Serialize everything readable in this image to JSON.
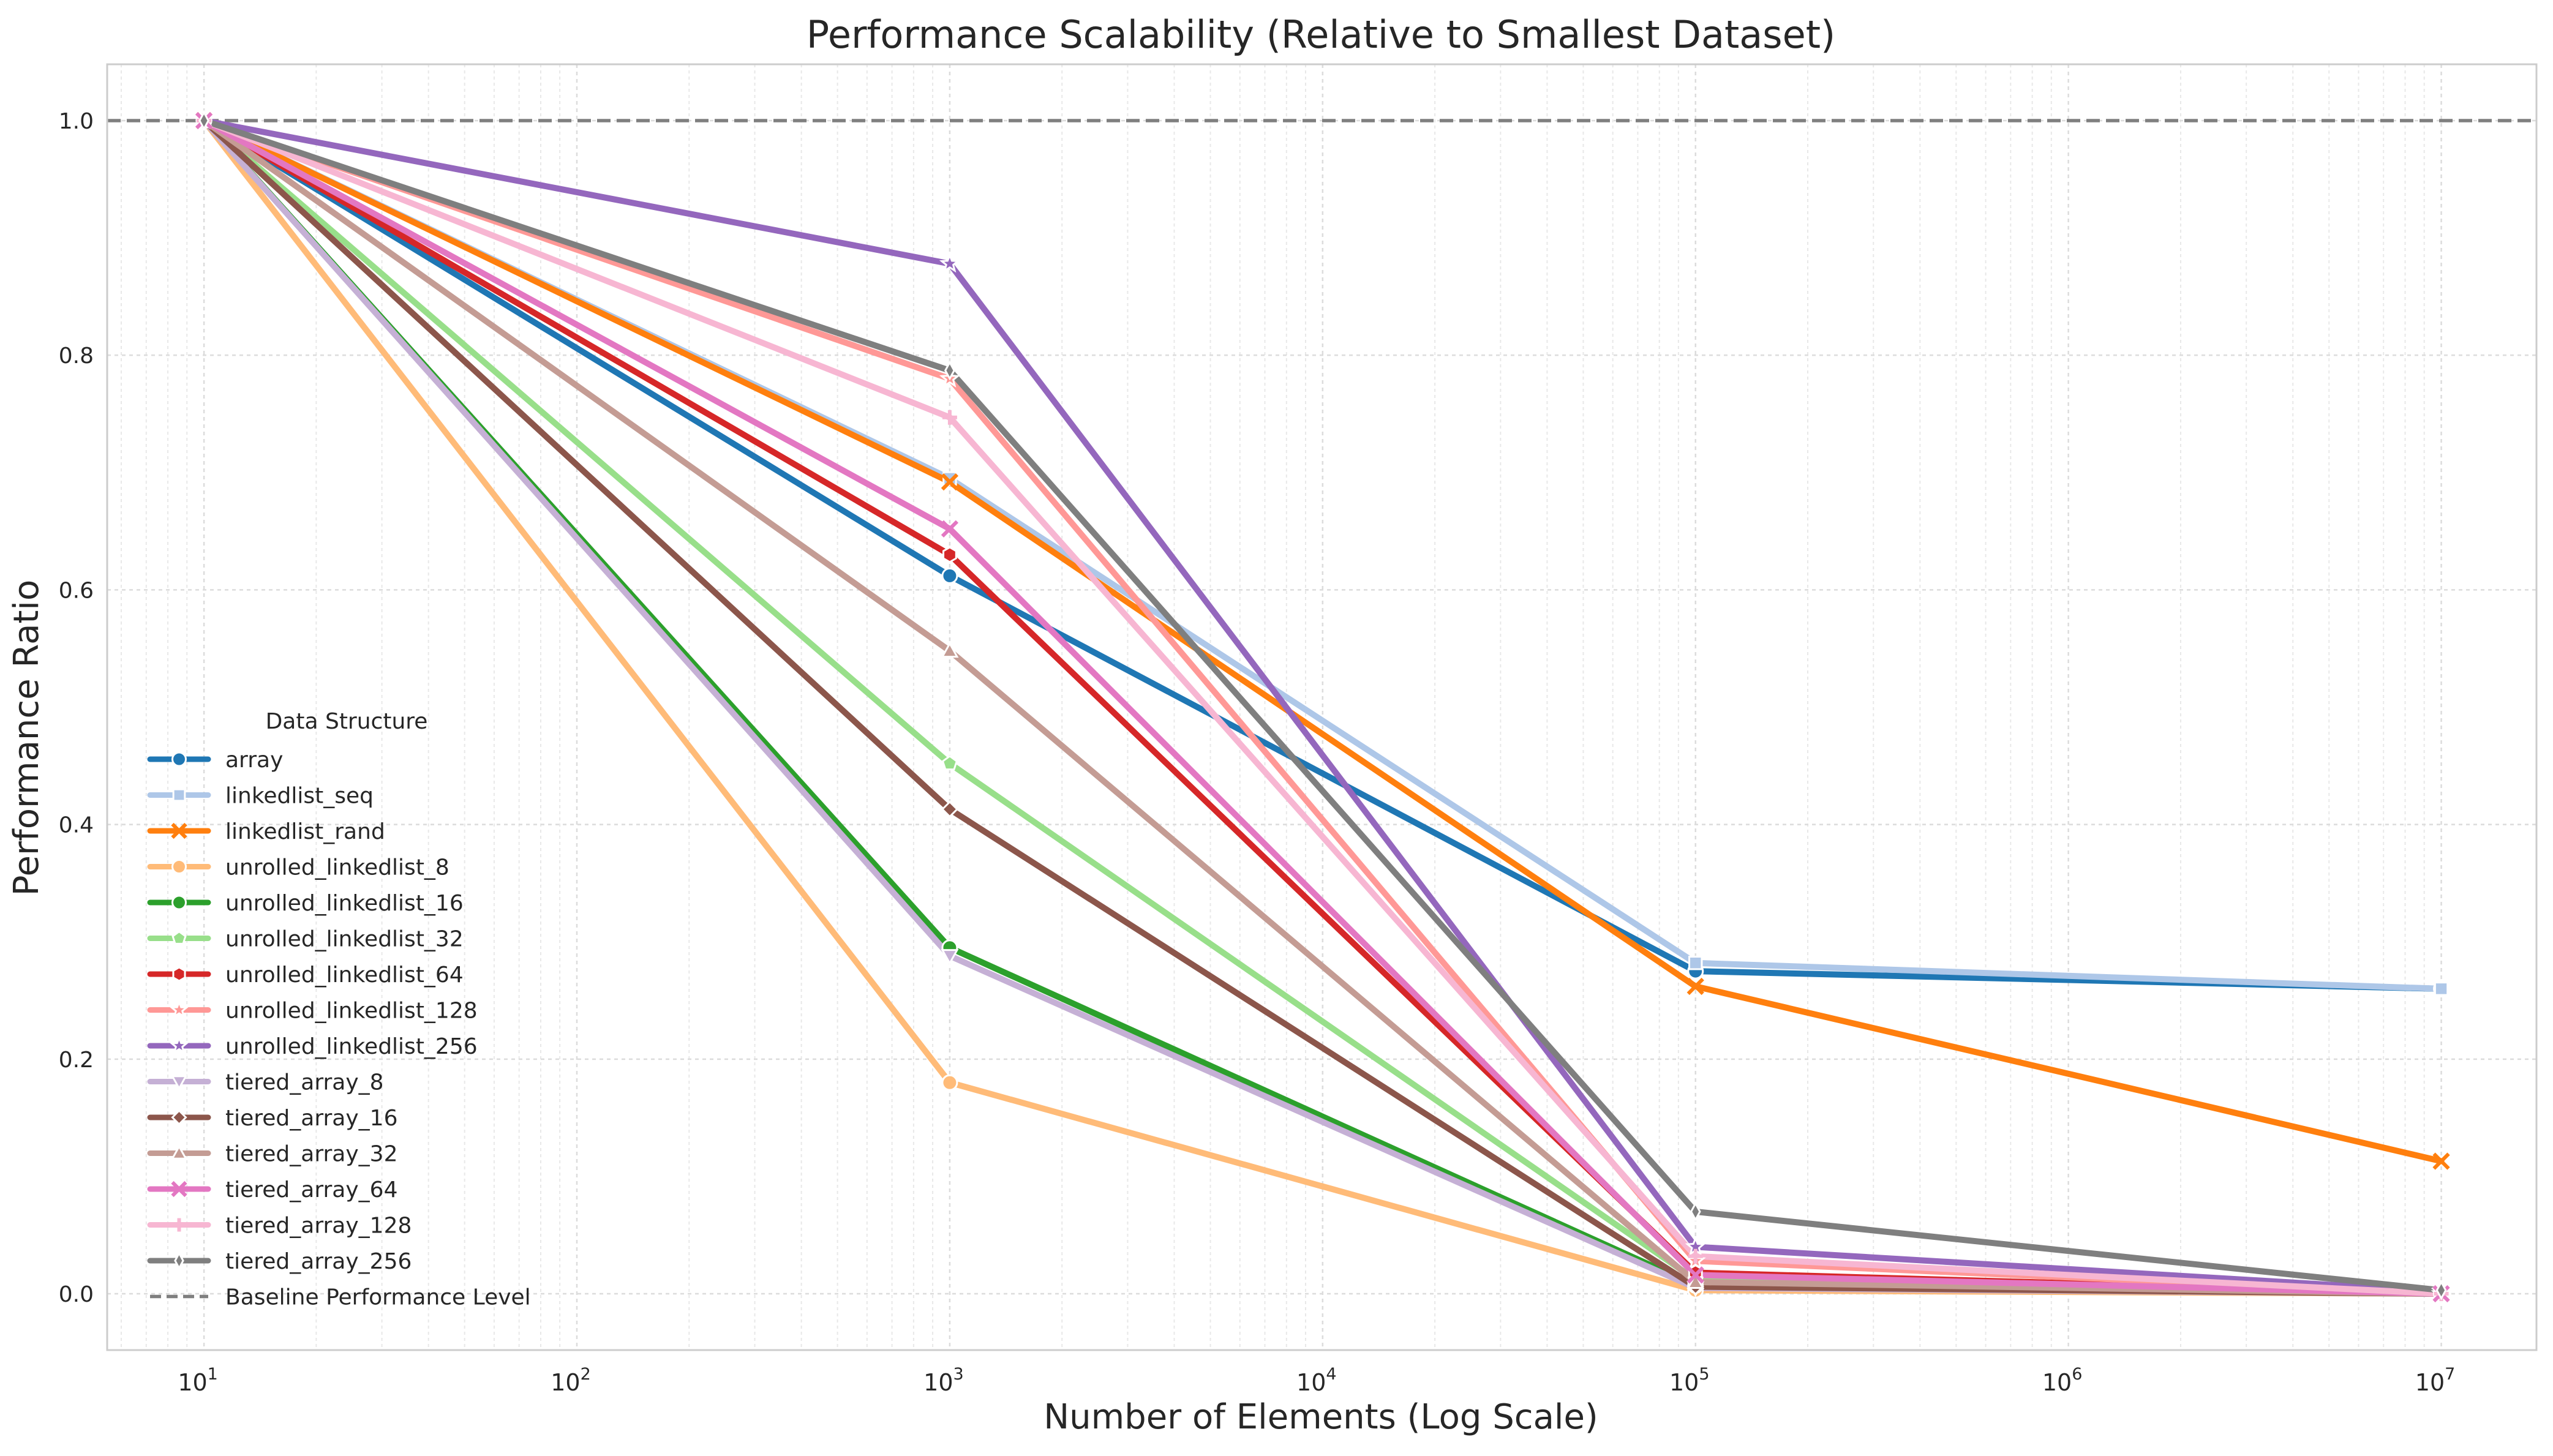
{
  "chart_data": {
    "type": "line",
    "title": "Performance Scalability (Relative to Smallest Dataset)",
    "xlabel": "Number of Elements (Log Scale)",
    "ylabel": "Performance Ratio",
    "x_scale": "log",
    "x": [
      10,
      1000,
      100000,
      10000000
    ],
    "xlim": [
      5.5,
      18000000
    ],
    "ylim": [
      -0.048,
      1.048
    ],
    "x_ticks": [
      {
        "value": 10,
        "base": "10",
        "exp": "1"
      },
      {
        "value": 100,
        "base": "10",
        "exp": "2"
      },
      {
        "value": 1000,
        "base": "10",
        "exp": "3"
      },
      {
        "value": 10000,
        "base": "10",
        "exp": "4"
      },
      {
        "value": 100000,
        "base": "10",
        "exp": "5"
      },
      {
        "value": 1000000,
        "base": "10",
        "exp": "6"
      },
      {
        "value": 10000000,
        "base": "10",
        "exp": "7"
      }
    ],
    "y_ticks": [
      {
        "value": 0.0,
        "label": "0.0"
      },
      {
        "value": 0.2,
        "label": "0.2"
      },
      {
        "value": 0.4,
        "label": "0.4"
      },
      {
        "value": 0.6,
        "label": "0.6"
      },
      {
        "value": 0.8,
        "label": "0.8"
      },
      {
        "value": 1.0,
        "label": "1.0"
      }
    ],
    "grid": true,
    "legend": {
      "title": "Data Structure",
      "position": "lower-left"
    },
    "baseline": {
      "name": "Baseline Performance Level",
      "value": 1.0,
      "color": "#7f7f7f",
      "style": "dashed"
    },
    "series": [
      {
        "name": "array",
        "color": "#1f77b4",
        "marker": "circle",
        "values": [
          1.0,
          0.612,
          0.275,
          0.26
        ]
      },
      {
        "name": "linkedlist_seq",
        "color": "#aec7e8",
        "marker": "square",
        "values": [
          1.0,
          0.695,
          0.282,
          0.26
        ]
      },
      {
        "name": "linkedlist_rand",
        "color": "#ff7f0e",
        "marker": "x",
        "values": [
          1.0,
          0.692,
          0.262,
          0.113
        ]
      },
      {
        "name": "unrolled_linkedlist_8",
        "color": "#ffbb78",
        "marker": "circle",
        "values": [
          1.0,
          0.18,
          0.003,
          0.0
        ]
      },
      {
        "name": "unrolled_linkedlist_16",
        "color": "#2ca02c",
        "marker": "circle",
        "values": [
          1.0,
          0.295,
          0.007,
          0.0
        ]
      },
      {
        "name": "unrolled_linkedlist_32",
        "color": "#98df8a",
        "marker": "pentagon",
        "values": [
          1.0,
          0.452,
          0.012,
          0.0
        ]
      },
      {
        "name": "unrolled_linkedlist_64",
        "color": "#d62728",
        "marker": "hexagon",
        "values": [
          1.0,
          0.63,
          0.018,
          0.0
        ]
      },
      {
        "name": "unrolled_linkedlist_128",
        "color": "#ff9896",
        "marker": "star",
        "values": [
          1.0,
          0.78,
          0.028,
          0.0
        ]
      },
      {
        "name": "unrolled_linkedlist_256",
        "color": "#9467bd",
        "marker": "star",
        "values": [
          1.0,
          0.878,
          0.04,
          0.002
        ]
      },
      {
        "name": "tiered_array_8",
        "color": "#c5b0d5",
        "marker": "triangle-down",
        "values": [
          1.0,
          0.288,
          0.005,
          0.0
        ]
      },
      {
        "name": "tiered_array_16",
        "color": "#8c564b",
        "marker": "diamond",
        "values": [
          1.0,
          0.413,
          0.006,
          0.0
        ]
      },
      {
        "name": "tiered_array_32",
        "color": "#c49c94",
        "marker": "triangle-up",
        "values": [
          1.0,
          0.548,
          0.01,
          0.0
        ]
      },
      {
        "name": "tiered_array_64",
        "color": "#e377c2",
        "marker": "x",
        "values": [
          1.0,
          0.652,
          0.016,
          0.0
        ]
      },
      {
        "name": "tiered_array_128",
        "color": "#f7b6d2",
        "marker": "plus",
        "values": [
          1.0,
          0.747,
          0.032,
          0.0
        ]
      },
      {
        "name": "tiered_array_256",
        "color": "#7f7f7f",
        "marker": "thin-diamond",
        "values": [
          1.0,
          0.787,
          0.07,
          0.003
        ]
      }
    ]
  }
}
